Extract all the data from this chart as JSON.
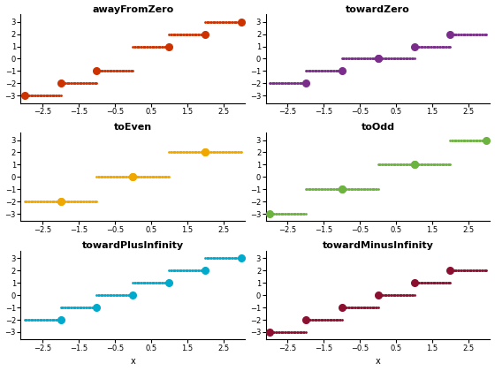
{
  "subplots": [
    {
      "title": "awayFromZero",
      "color": "#CC3300",
      "rounding": "awayFromZero"
    },
    {
      "title": "towardZero",
      "color": "#7B2D8B",
      "rounding": "towardZero"
    },
    {
      "title": "toEven",
      "color": "#F0A800",
      "rounding": "toEven"
    },
    {
      "title": "toOdd",
      "color": "#6DB33F",
      "rounding": "toOdd"
    },
    {
      "title": "towardPlusInfinity",
      "color": "#00AACC",
      "rounding": "towardPlusInfinity"
    },
    {
      "title": "towardMinusInfinity",
      "color": "#8B1030",
      "rounding": "towardMinusInfinity"
    }
  ],
  "half_values": [
    -2.5,
    -1.5,
    -0.5,
    0.5,
    1.5,
    2.5
  ],
  "yticks": [
    -3,
    -2,
    -1,
    0,
    1,
    2,
    3
  ],
  "xticks": [
    -2.5,
    -1.5,
    -0.5,
    0.5,
    1.5,
    2.5
  ],
  "xlabel": "x",
  "figsize": [
    5.6,
    4.2
  ],
  "dpi": 100
}
